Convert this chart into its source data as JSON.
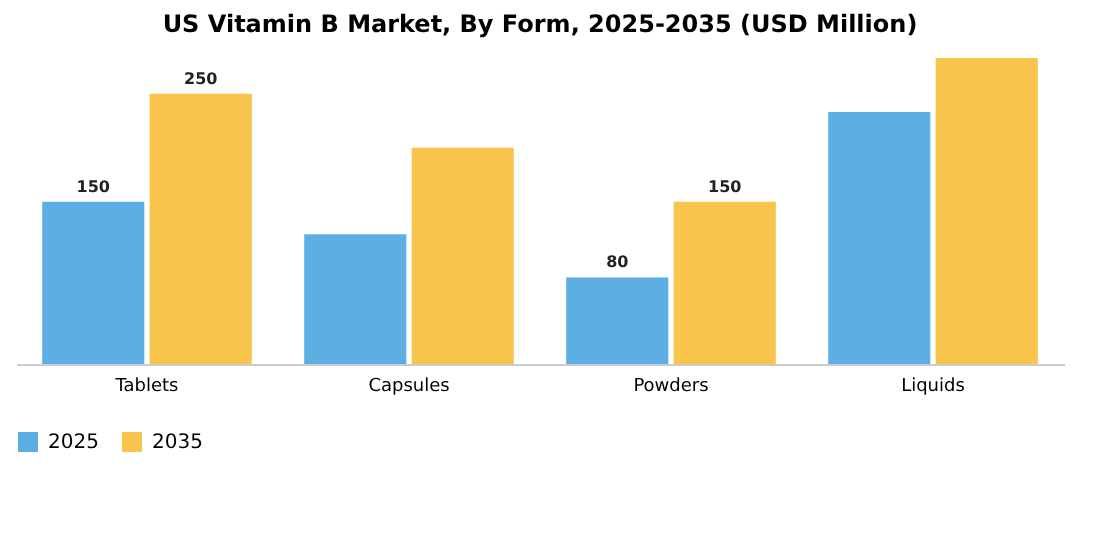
{
  "chart_data": {
    "type": "bar",
    "title": "US Vitamin B Market, By Form, 2025-2035 (USD Million)",
    "categories": [
      "Tablets",
      "Capsules",
      "Powders",
      "Liquids"
    ],
    "series": [
      {
        "name": "2025",
        "color": "#5dafe3",
        "values": [
          150,
          120,
          80,
          233
        ],
        "value_labels": [
          "150",
          null,
          "80",
          null
        ]
      },
      {
        "name": "2035",
        "color": "#f8c44c",
        "values": [
          250,
          200,
          150,
          283
        ],
        "value_labels": [
          "250",
          null,
          "150",
          null
        ]
      }
    ],
    "legend": "bottom"
  }
}
